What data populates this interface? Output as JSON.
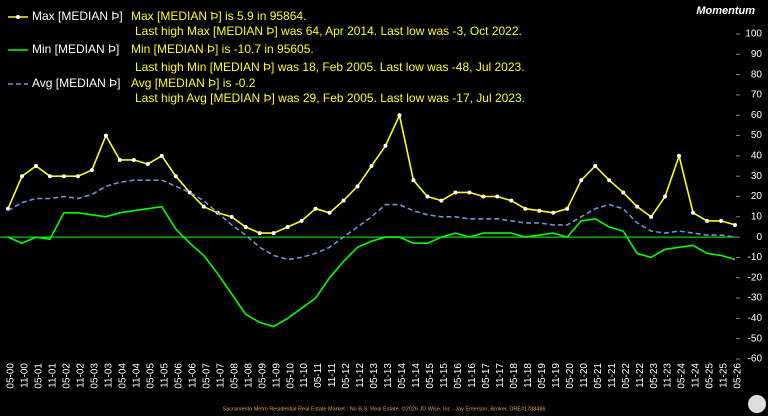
{
  "chart_data": {
    "type": "line",
    "title": "Momentum",
    "categories": [
      "05-00",
      "11-00",
      "05-01",
      "11-01",
      "05-02",
      "11-02",
      "05-03",
      "11-03",
      "05-04",
      "11-04",
      "05-05",
      "11-05",
      "05-06",
      "11-06",
      "05-07",
      "11-07",
      "05-08",
      "11-08",
      "05-09",
      "11-09",
      "05-10",
      "11-10",
      "05-11",
      "11-11",
      "05-12",
      "11-12",
      "05-13",
      "11-13",
      "05-14",
      "11-14",
      "05-15",
      "11-15",
      "05-16",
      "11-16",
      "05-17",
      "11-17",
      "05-18",
      "11-18",
      "05-19",
      "11-19",
      "05-20",
      "11-20",
      "05-21",
      "11-21",
      "05-22",
      "11-22",
      "05-23",
      "11-23",
      "05-24",
      "11-24",
      "05-25",
      "11-25",
      "05-26"
    ],
    "series": [
      {
        "name": "Max [MEDIAN Þ]",
        "color": "#ffff00",
        "markers": true,
        "values": [
          14,
          30,
          35,
          30,
          30,
          30,
          33,
          50,
          38,
          38,
          36,
          40,
          30,
          22,
          15,
          12,
          10,
          5,
          2,
          2,
          5,
          8,
          14,
          12,
          18,
          25,
          35,
          45,
          60,
          28,
          20,
          18,
          22,
          22,
          20,
          20,
          18,
          14,
          13,
          12,
          14,
          28,
          35,
          28,
          22,
          15,
          10,
          20,
          40,
          12,
          8,
          8,
          6
        ]
      },
      {
        "name": "Min [MEDIAN Þ]",
        "color": "#00ff00",
        "markers": false,
        "values": [
          0,
          -3,
          0,
          -1,
          12,
          12,
          11,
          10,
          12,
          13,
          14,
          15,
          4,
          -3,
          -9,
          -18,
          -28,
          -38,
          -42,
          -44,
          -40,
          -35,
          -30,
          -20,
          -12,
          -5,
          -2,
          0,
          0,
          -3,
          -3,
          0,
          2,
          0,
          2,
          2,
          2,
          0,
          1,
          2,
          0,
          8,
          9,
          5,
          3,
          -8,
          -10,
          -6,
          -5,
          -4,
          -8,
          -9,
          -11
        ]
      },
      {
        "name": "Avg [MEDIAN Þ]",
        "color": "#6f93d6",
        "dashed": true,
        "markers": false,
        "values": [
          13,
          17,
          19,
          19,
          20,
          19,
          21,
          25,
          27,
          28,
          28,
          28,
          25,
          22,
          18,
          12,
          6,
          1,
          -5,
          -9,
          -11,
          -10,
          -8,
          -5,
          0,
          5,
          10,
          16,
          16,
          13,
          11,
          10,
          10,
          9,
          9,
          9,
          8,
          7,
          7,
          6,
          6,
          10,
          14,
          16,
          14,
          7,
          3,
          2,
          3,
          2,
          1,
          1,
          0
        ]
      }
    ],
    "annotations": [
      "Max [MEDIAN Þ] is 5.9 in 95864.",
      "Last high Max [MEDIAN Þ] was 64, Apr 2014. Last low was -3, Oct 2022.",
      "Min [MEDIAN Þ] is -10.7 in 95605.",
      "Last high Min [MEDIAN Þ] was 18, Feb 2005. Last low was -48, Jul 2023.",
      "Avg [MEDIAN Þ] is -0.2",
      "Last high Avg [MEDIAN Þ] was 29, Feb 2005. Last low was -17, Jul 2023."
    ],
    "footer": "Sacramento Metro Residential Real Estate Market - No B.S. Real Estate. ©2026 JD Wise, Inc - Jay Emerson, Broker, DRE#1788486",
    "ylim": [
      -60,
      100
    ],
    "yticks": [
      -60,
      -50,
      -40,
      -30,
      -20,
      -10,
      0,
      10,
      20,
      30,
      40,
      50,
      60,
      70,
      80,
      90,
      100
    ],
    "zero_line_color": "#00ff00"
  }
}
